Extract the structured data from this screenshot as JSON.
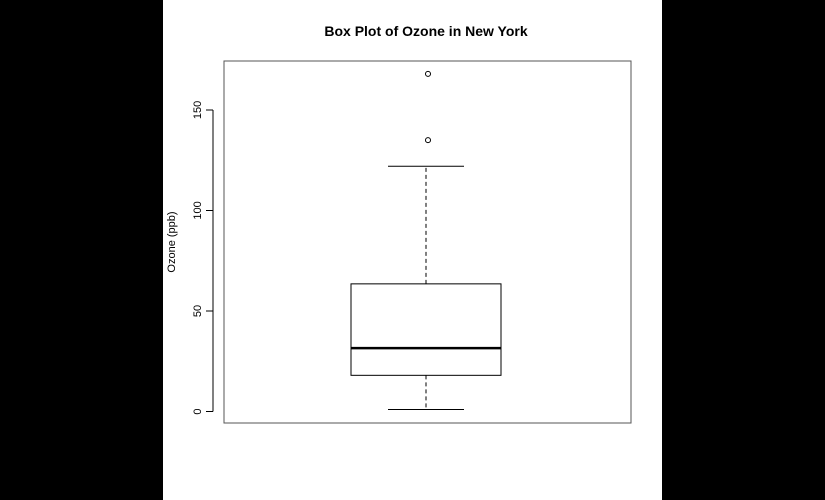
{
  "chart_data": {
    "type": "box",
    "title": "Box Plot of Ozone in New York",
    "ylabel": "Ozone (ppb)",
    "xlabel": "",
    "ylim": [
      0,
      168
    ],
    "yticks": [
      0,
      50,
      100,
      150
    ],
    "grid": false,
    "box": {
      "whisker_low": 1,
      "q1": 18,
      "median": 31.5,
      "q3": 63.5,
      "whisker_high": 122,
      "outliers": [
        135,
        168
      ]
    }
  },
  "colors": {
    "outer_background": "#000000",
    "plot_background": "#ffffff",
    "ink": "#000000"
  }
}
